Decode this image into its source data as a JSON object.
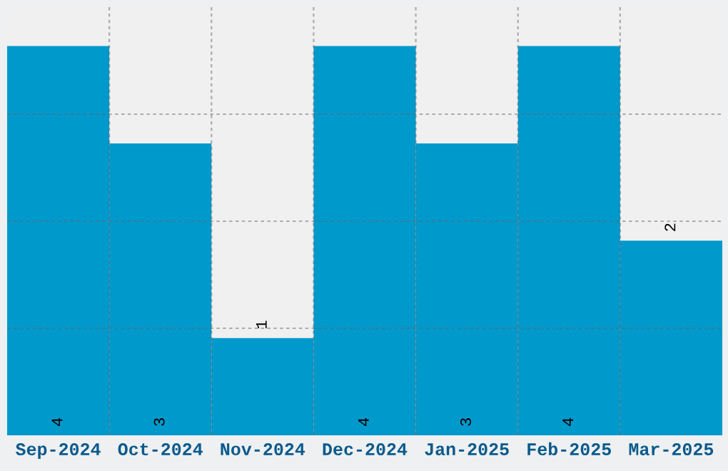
{
  "chart_data": {
    "type": "bar",
    "categories": [
      "Sep-2024",
      "Oct-2024",
      "Nov-2024",
      "Dec-2024",
      "Jan-2025",
      "Feb-2025",
      "Mar-2025"
    ],
    "values": [
      4,
      3,
      1,
      4,
      3,
      4,
      2
    ],
    "color": "#0099cc",
    "data_labels": true,
    "ylim": [
      0,
      4.4
    ],
    "yticks": [
      {
        "value": 1.1,
        "label": null
      },
      {
        "value": 2.2,
        "label": null
      },
      {
        "value": 3.3,
        "label": null
      }
    ],
    "tick_labels": "x",
    "grid": true
  }
}
